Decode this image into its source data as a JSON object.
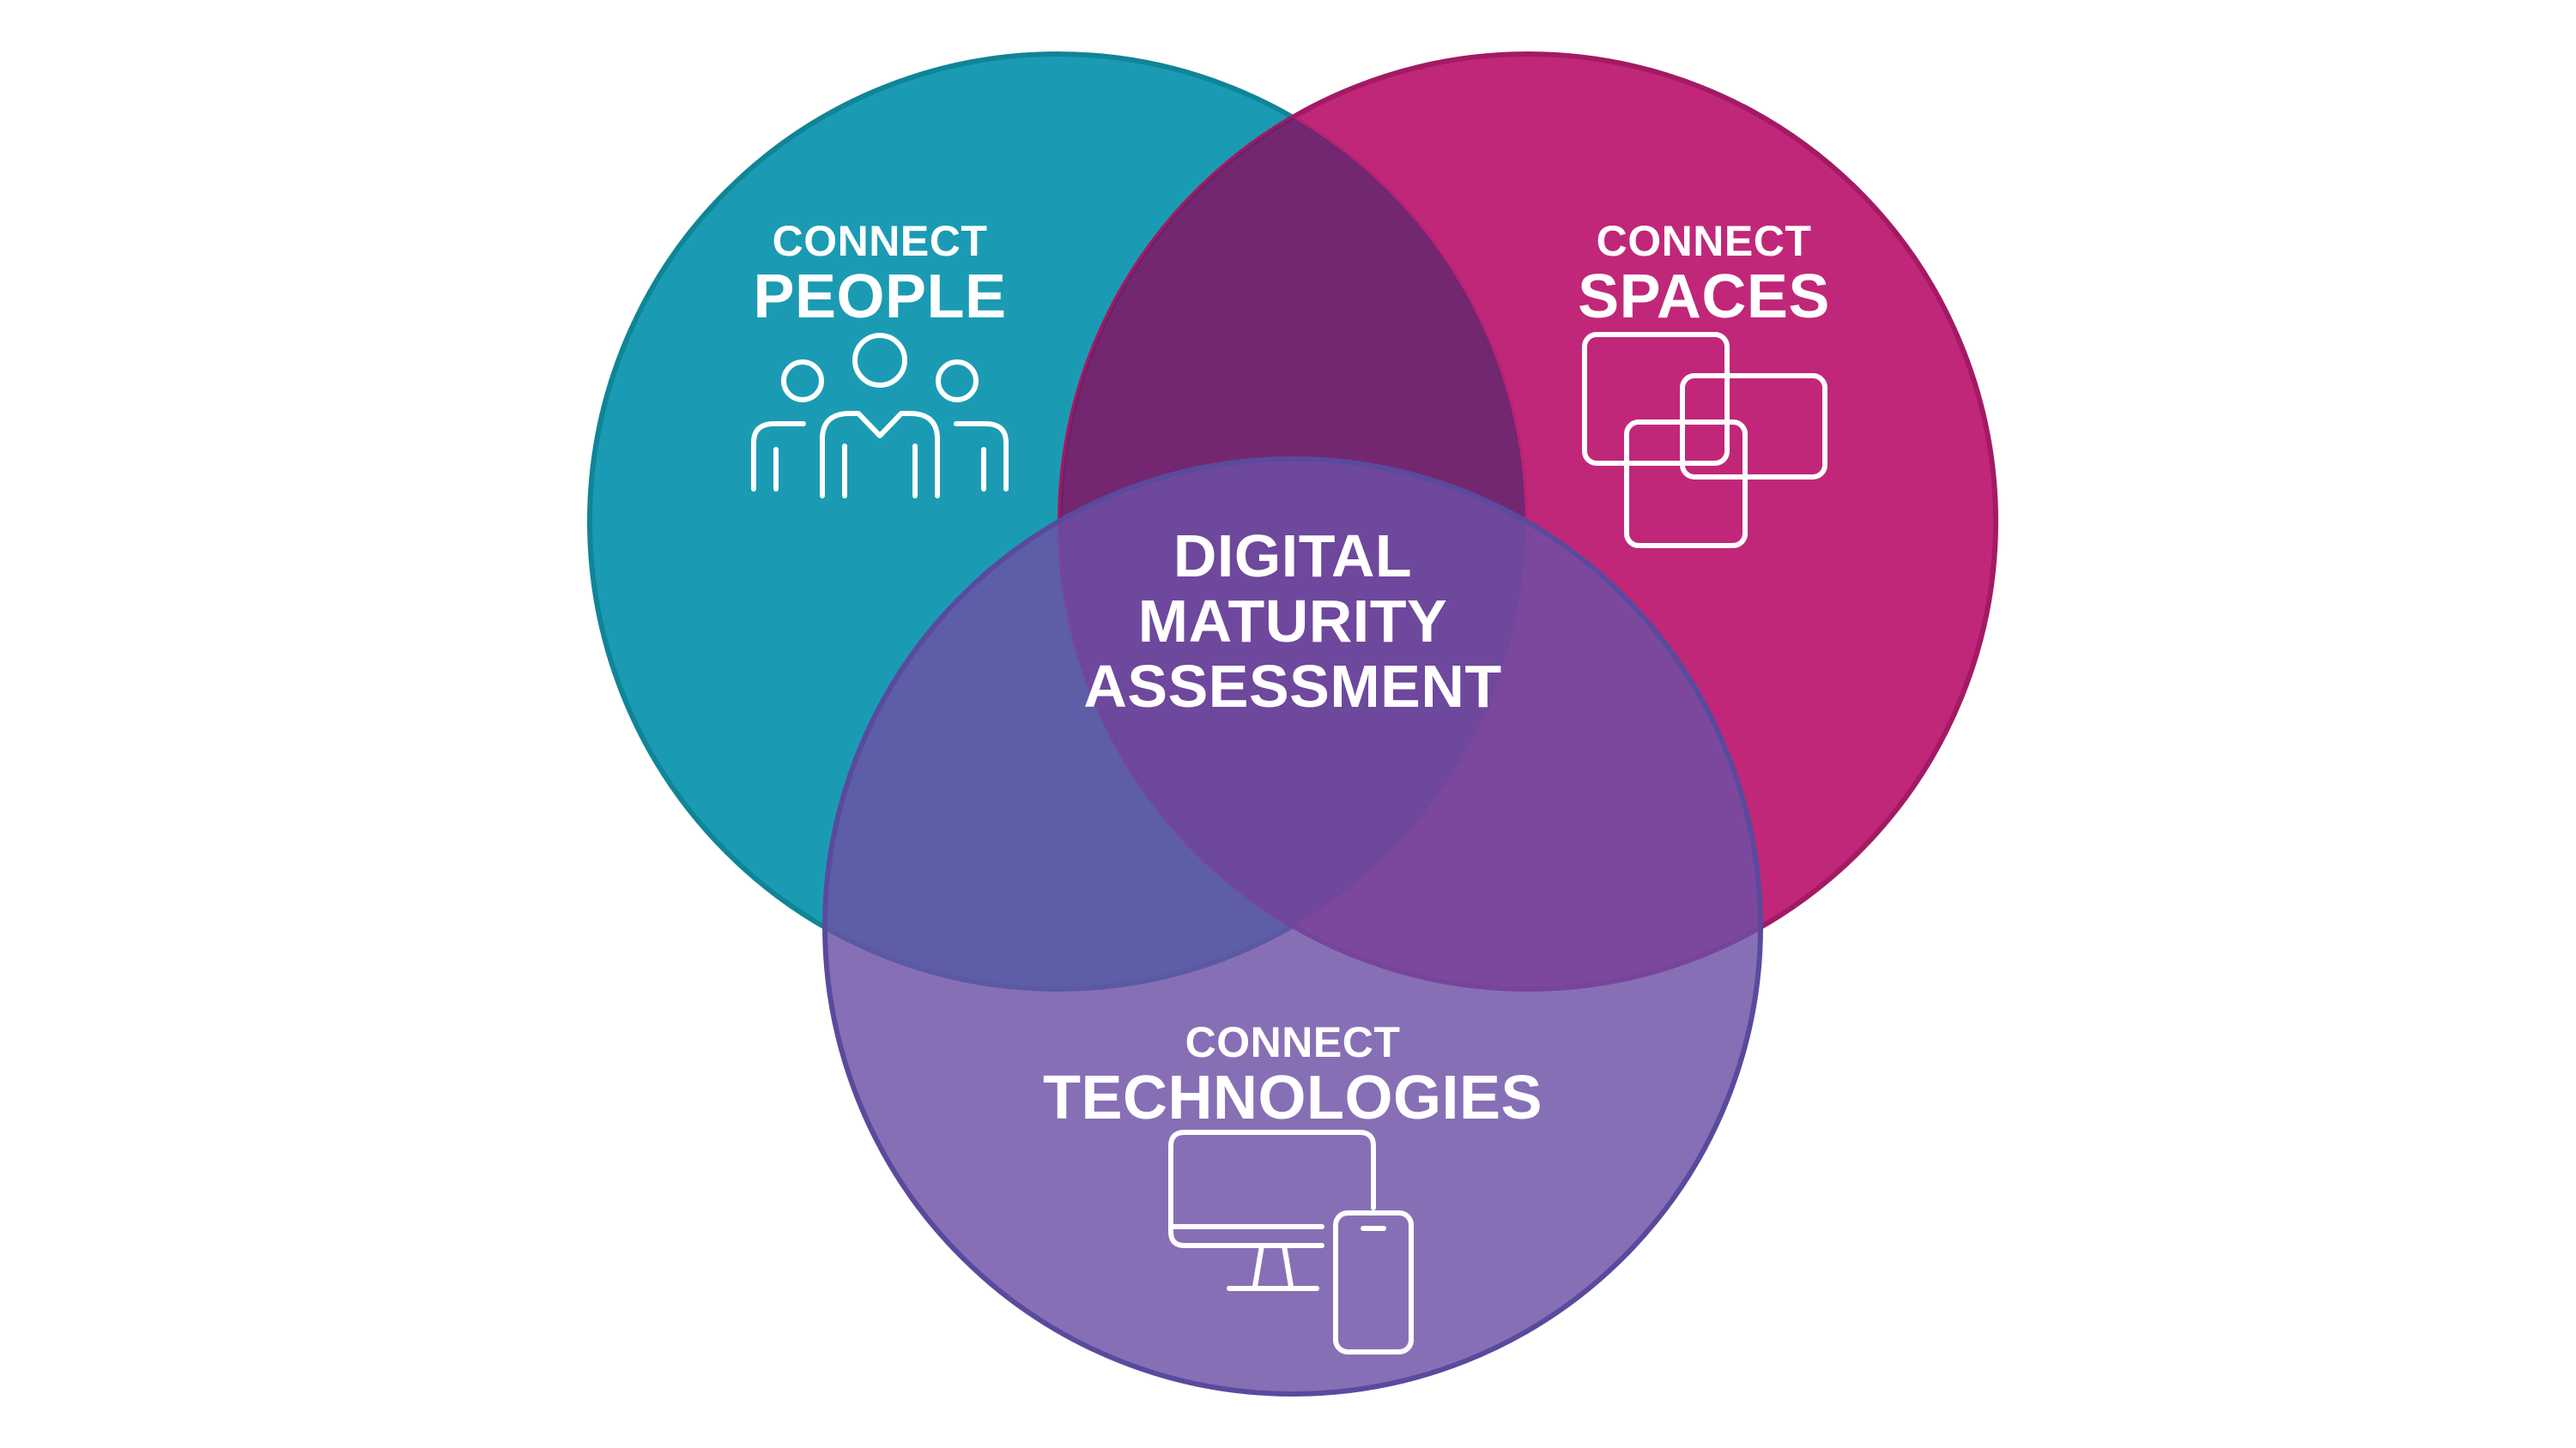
{
  "diagram": {
    "circles": [
      {
        "id": "people",
        "line1": "CONNECT",
        "line2": "PEOPLE",
        "icon": "people-group-icon",
        "fill": "#1B9BB3",
        "stroke": "#0F8597"
      },
      {
        "id": "spaces",
        "line1": "CONNECT",
        "line2": "SPACES",
        "icon": "overlapping-squares-icon",
        "fill": "#BE2075",
        "stroke": "#A31A64"
      },
      {
        "id": "technologies",
        "line1": "CONNECT",
        "line2": "TECHNOLOGIES",
        "icon": "devices-icon",
        "fill": "#6C4FA6",
        "stroke": "#5A4A9E"
      }
    ],
    "center": {
      "lines": [
        "DIGITAL",
        "MATURITY",
        "ASSESSMENT"
      ]
    },
    "background": "#FFFFFF"
  }
}
